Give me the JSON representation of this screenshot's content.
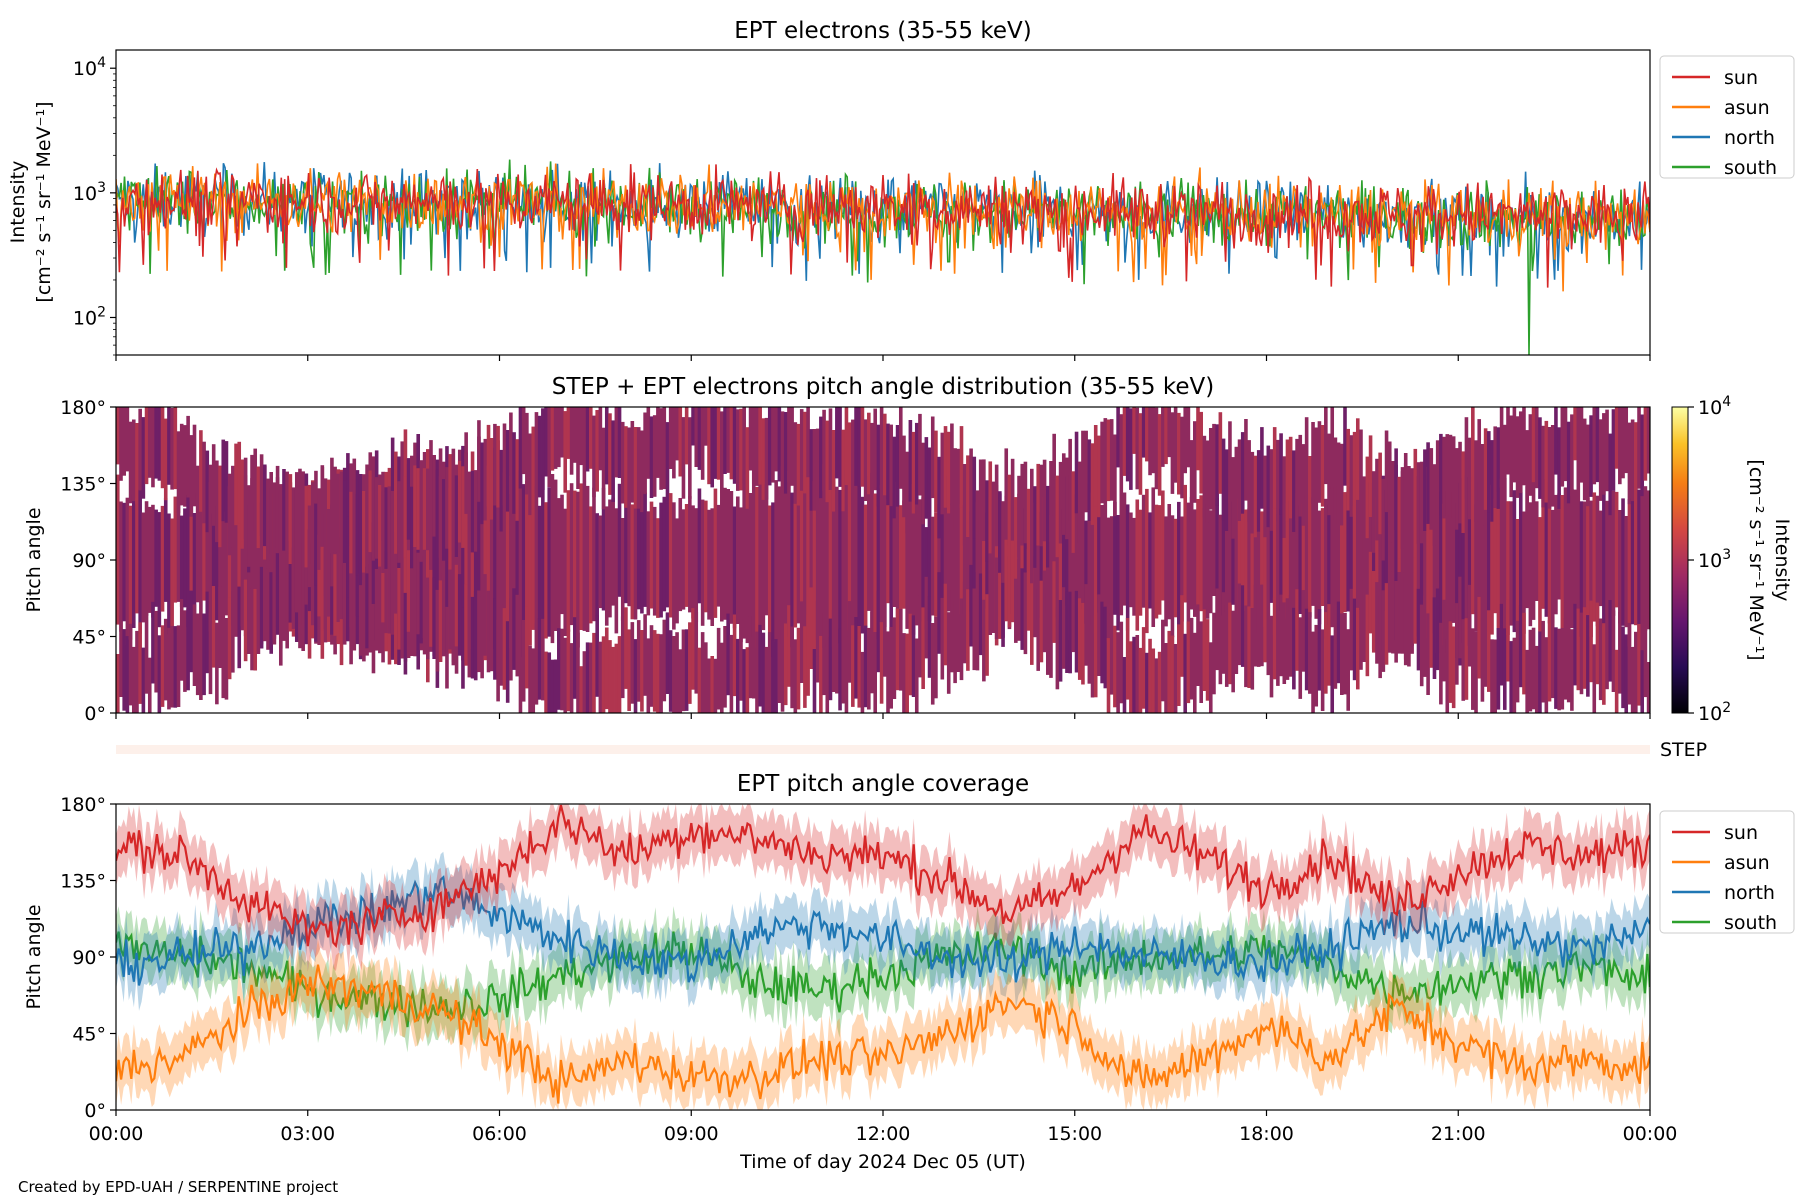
{
  "credit": "Created by EPD-UAH / SERPENTINE project",
  "colors": {
    "sun": "#d62728",
    "asun": "#ff7f0e",
    "north": "#1f77b4",
    "south": "#2ca02c",
    "pad_low": "#3b0f70",
    "pad_high": "#e8503a"
  },
  "chart_data": [
    {
      "type": "line",
      "title": "EPT electrons (35-55 keV)",
      "ylabel_lines": [
        "Intensity",
        "[cm⁻² s⁻¹ sr⁻¹ MeV⁻¹]"
      ],
      "yscale": "log",
      "ylim": [
        50,
        14000
      ],
      "y_ticks": [
        {
          "value": 100,
          "base": "10",
          "exp": "2"
        },
        {
          "value": 1000,
          "base": "10",
          "exp": "3"
        },
        {
          "value": 10000,
          "base": "10",
          "exp": "4"
        }
      ],
      "legend_position": "outside-right",
      "series": [
        {
          "name": "sun",
          "color": "#d62728",
          "x": [
            0,
            2,
            4,
            6,
            8,
            10,
            12,
            14,
            16,
            18,
            20,
            22,
            24
          ],
          "y": [
            900,
            880,
            860,
            850,
            830,
            800,
            770,
            740,
            720,
            700,
            680,
            660,
            640
          ]
        },
        {
          "name": "asun",
          "color": "#ff7f0e",
          "x": [
            0,
            2,
            4,
            6,
            8,
            10,
            12,
            14,
            16,
            18,
            20,
            22,
            24
          ],
          "y": [
            880,
            870,
            850,
            840,
            820,
            790,
            760,
            730,
            710,
            690,
            670,
            650,
            630
          ]
        },
        {
          "name": "north",
          "color": "#1f77b4",
          "x": [
            0,
            2,
            4,
            6,
            8,
            10,
            12,
            14,
            16,
            18,
            20,
            22,
            24
          ],
          "y": [
            870,
            860,
            840,
            830,
            810,
            780,
            750,
            720,
            700,
            680,
            660,
            640,
            620
          ]
        },
        {
          "name": "south",
          "color": "#2ca02c",
          "x": [
            0,
            2,
            4,
            6,
            8,
            10,
            12,
            14,
            16,
            18,
            20,
            22,
            24
          ],
          "y": [
            860,
            850,
            830,
            820,
            800,
            770,
            740,
            710,
            690,
            670,
            650,
            630,
            610
          ]
        }
      ],
      "min_value_south": 50
    },
    {
      "type": "heatmap",
      "title": "STEP + EPT electrons pitch angle distribution (35-55 keV)",
      "ylabel": "Pitch angle",
      "ylim": [
        0,
        180
      ],
      "y_ticks": [
        "0°",
        "45°",
        "90°",
        "135°",
        "180°"
      ],
      "colorbar": {
        "label_lines": [
          "Intensity",
          "[cm⁻² s⁻¹ sr⁻¹ MeV⁻¹]"
        ],
        "scale": "log",
        "range": [
          100,
          10000
        ],
        "ticks": [
          {
            "value": 100,
            "base": "10",
            "exp": "2"
          },
          {
            "value": 1000,
            "base": "10",
            "exp": "3"
          },
          {
            "value": 10000,
            "base": "10",
            "exp": "4"
          }
        ]
      },
      "step_label": "STEP"
    },
    {
      "type": "line",
      "title": "EPT pitch angle coverage",
      "ylabel": "Pitch angle",
      "xlabel": "Time of day 2024 Dec 05 (UT)",
      "ylim": [
        0,
        180
      ],
      "y_ticks": [
        "0°",
        "45°",
        "90°",
        "135°",
        "180°"
      ],
      "x_ticks": [
        "00:00",
        "03:00",
        "06:00",
        "09:00",
        "12:00",
        "15:00",
        "18:00",
        "21:00",
        "00:00"
      ],
      "xlim_hours": [
        0,
        24
      ],
      "legend_position": "outside-right",
      "series": [
        {
          "name": "sun",
          "color": "#d62728",
          "x": [
            0,
            1,
            2,
            3,
            4,
            5,
            6,
            7,
            8,
            9,
            10,
            11,
            12,
            13,
            14,
            15,
            16,
            17,
            18,
            19,
            20,
            21,
            22,
            23,
            24
          ],
          "y": [
            155,
            150,
            125,
            105,
            110,
            120,
            140,
            170,
            150,
            165,
            160,
            150,
            150,
            135,
            115,
            130,
            165,
            150,
            130,
            150,
            120,
            140,
            155,
            150,
            155
          ]
        },
        {
          "name": "asun",
          "color": "#ff7f0e",
          "x": [
            0,
            1,
            2,
            3,
            4,
            5,
            6,
            7,
            8,
            9,
            10,
            11,
            12,
            13,
            14,
            15,
            16,
            17,
            18,
            19,
            20,
            21,
            22,
            23,
            24
          ],
          "y": [
            25,
            30,
            55,
            75,
            70,
            60,
            40,
            15,
            30,
            20,
            20,
            30,
            30,
            45,
            65,
            50,
            15,
            30,
            50,
            30,
            60,
            40,
            25,
            30,
            25
          ]
        },
        {
          "name": "north",
          "color": "#1f77b4",
          "x": [
            0,
            1,
            2,
            3,
            4,
            5,
            6,
            7,
            8,
            9,
            10,
            11,
            12,
            13,
            14,
            15,
            16,
            17,
            18,
            19,
            20,
            21,
            22,
            23,
            24
          ],
          "y": [
            85,
            90,
            95,
            110,
            115,
            130,
            115,
            100,
            90,
            85,
            105,
            110,
            100,
            90,
            85,
            100,
            90,
            90,
            85,
            95,
            110,
            105,
            100,
            95,
            105
          ]
        },
        {
          "name": "south",
          "color": "#2ca02c",
          "x": [
            0,
            1,
            2,
            3,
            4,
            5,
            6,
            7,
            8,
            9,
            10,
            11,
            12,
            13,
            14,
            15,
            16,
            17,
            18,
            19,
            20,
            21,
            22,
            23,
            24
          ],
          "y": [
            95,
            90,
            85,
            70,
            65,
            60,
            65,
            80,
            90,
            95,
            75,
            70,
            80,
            90,
            95,
            80,
            90,
            90,
            95,
            85,
            70,
            75,
            80,
            85,
            75
          ]
        }
      ]
    }
  ]
}
